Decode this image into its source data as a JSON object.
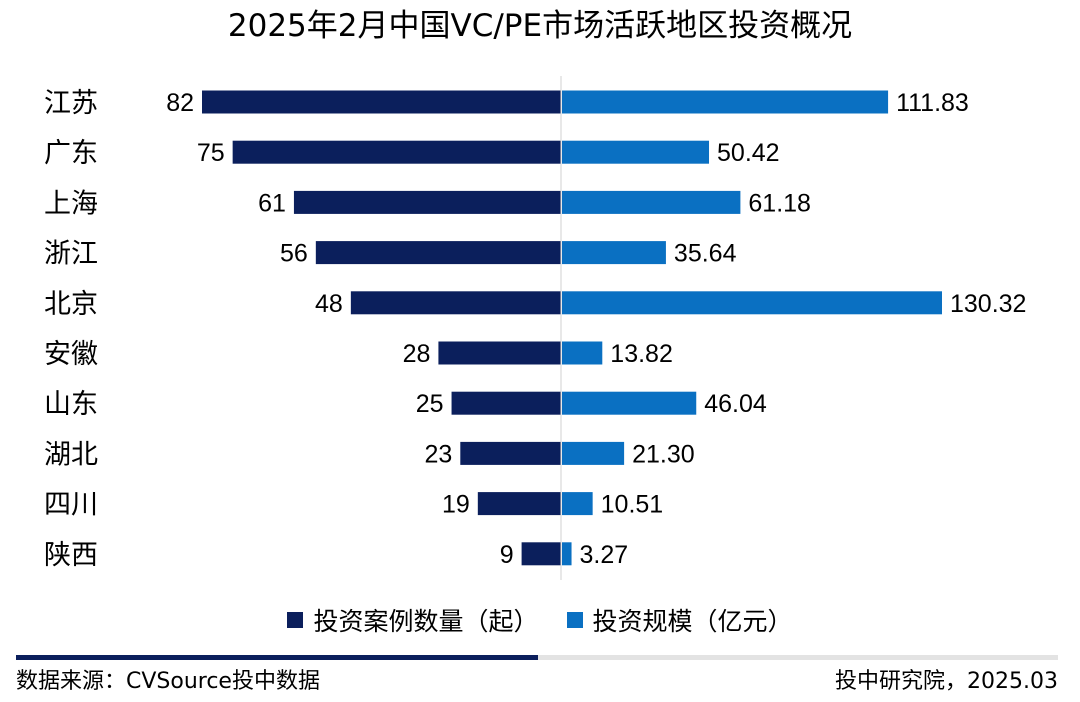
{
  "chart_data": {
    "type": "bar",
    "orientation": "horizontal-diverging",
    "title": "2025年2月中国VC/PE市场活跃地区投资概况",
    "categories": [
      "江苏",
      "广东",
      "上海",
      "浙江",
      "北京",
      "安徽",
      "山东",
      "湖北",
      "四川",
      "陕西"
    ],
    "series": [
      {
        "name": "投资案例数量（起）",
        "side": "left",
        "color": "#0b1f5c",
        "values": [
          82,
          75,
          61,
          56,
          48,
          28,
          25,
          23,
          19,
          9
        ],
        "labels": [
          "82",
          "75",
          "61",
          "56",
          "48",
          "28",
          "25",
          "23",
          "19",
          "9"
        ]
      },
      {
        "name": "投资规模（亿元）",
        "side": "right",
        "color": "#0a70c2",
        "values": [
          111.83,
          50.42,
          61.18,
          35.64,
          130.32,
          13.82,
          46.04,
          21.3,
          10.51,
          3.27
        ],
        "labels": [
          "111.83",
          "50.42",
          "61.18",
          "35.64",
          "130.32",
          "13.82",
          "46.04",
          "21.30",
          "10.51",
          "3.27"
        ]
      }
    ],
    "legend": "bottom",
    "grid": false
  },
  "footer": {
    "source": "数据来源：CVSource投中数据",
    "credit": "投中研究院，2025.03"
  }
}
